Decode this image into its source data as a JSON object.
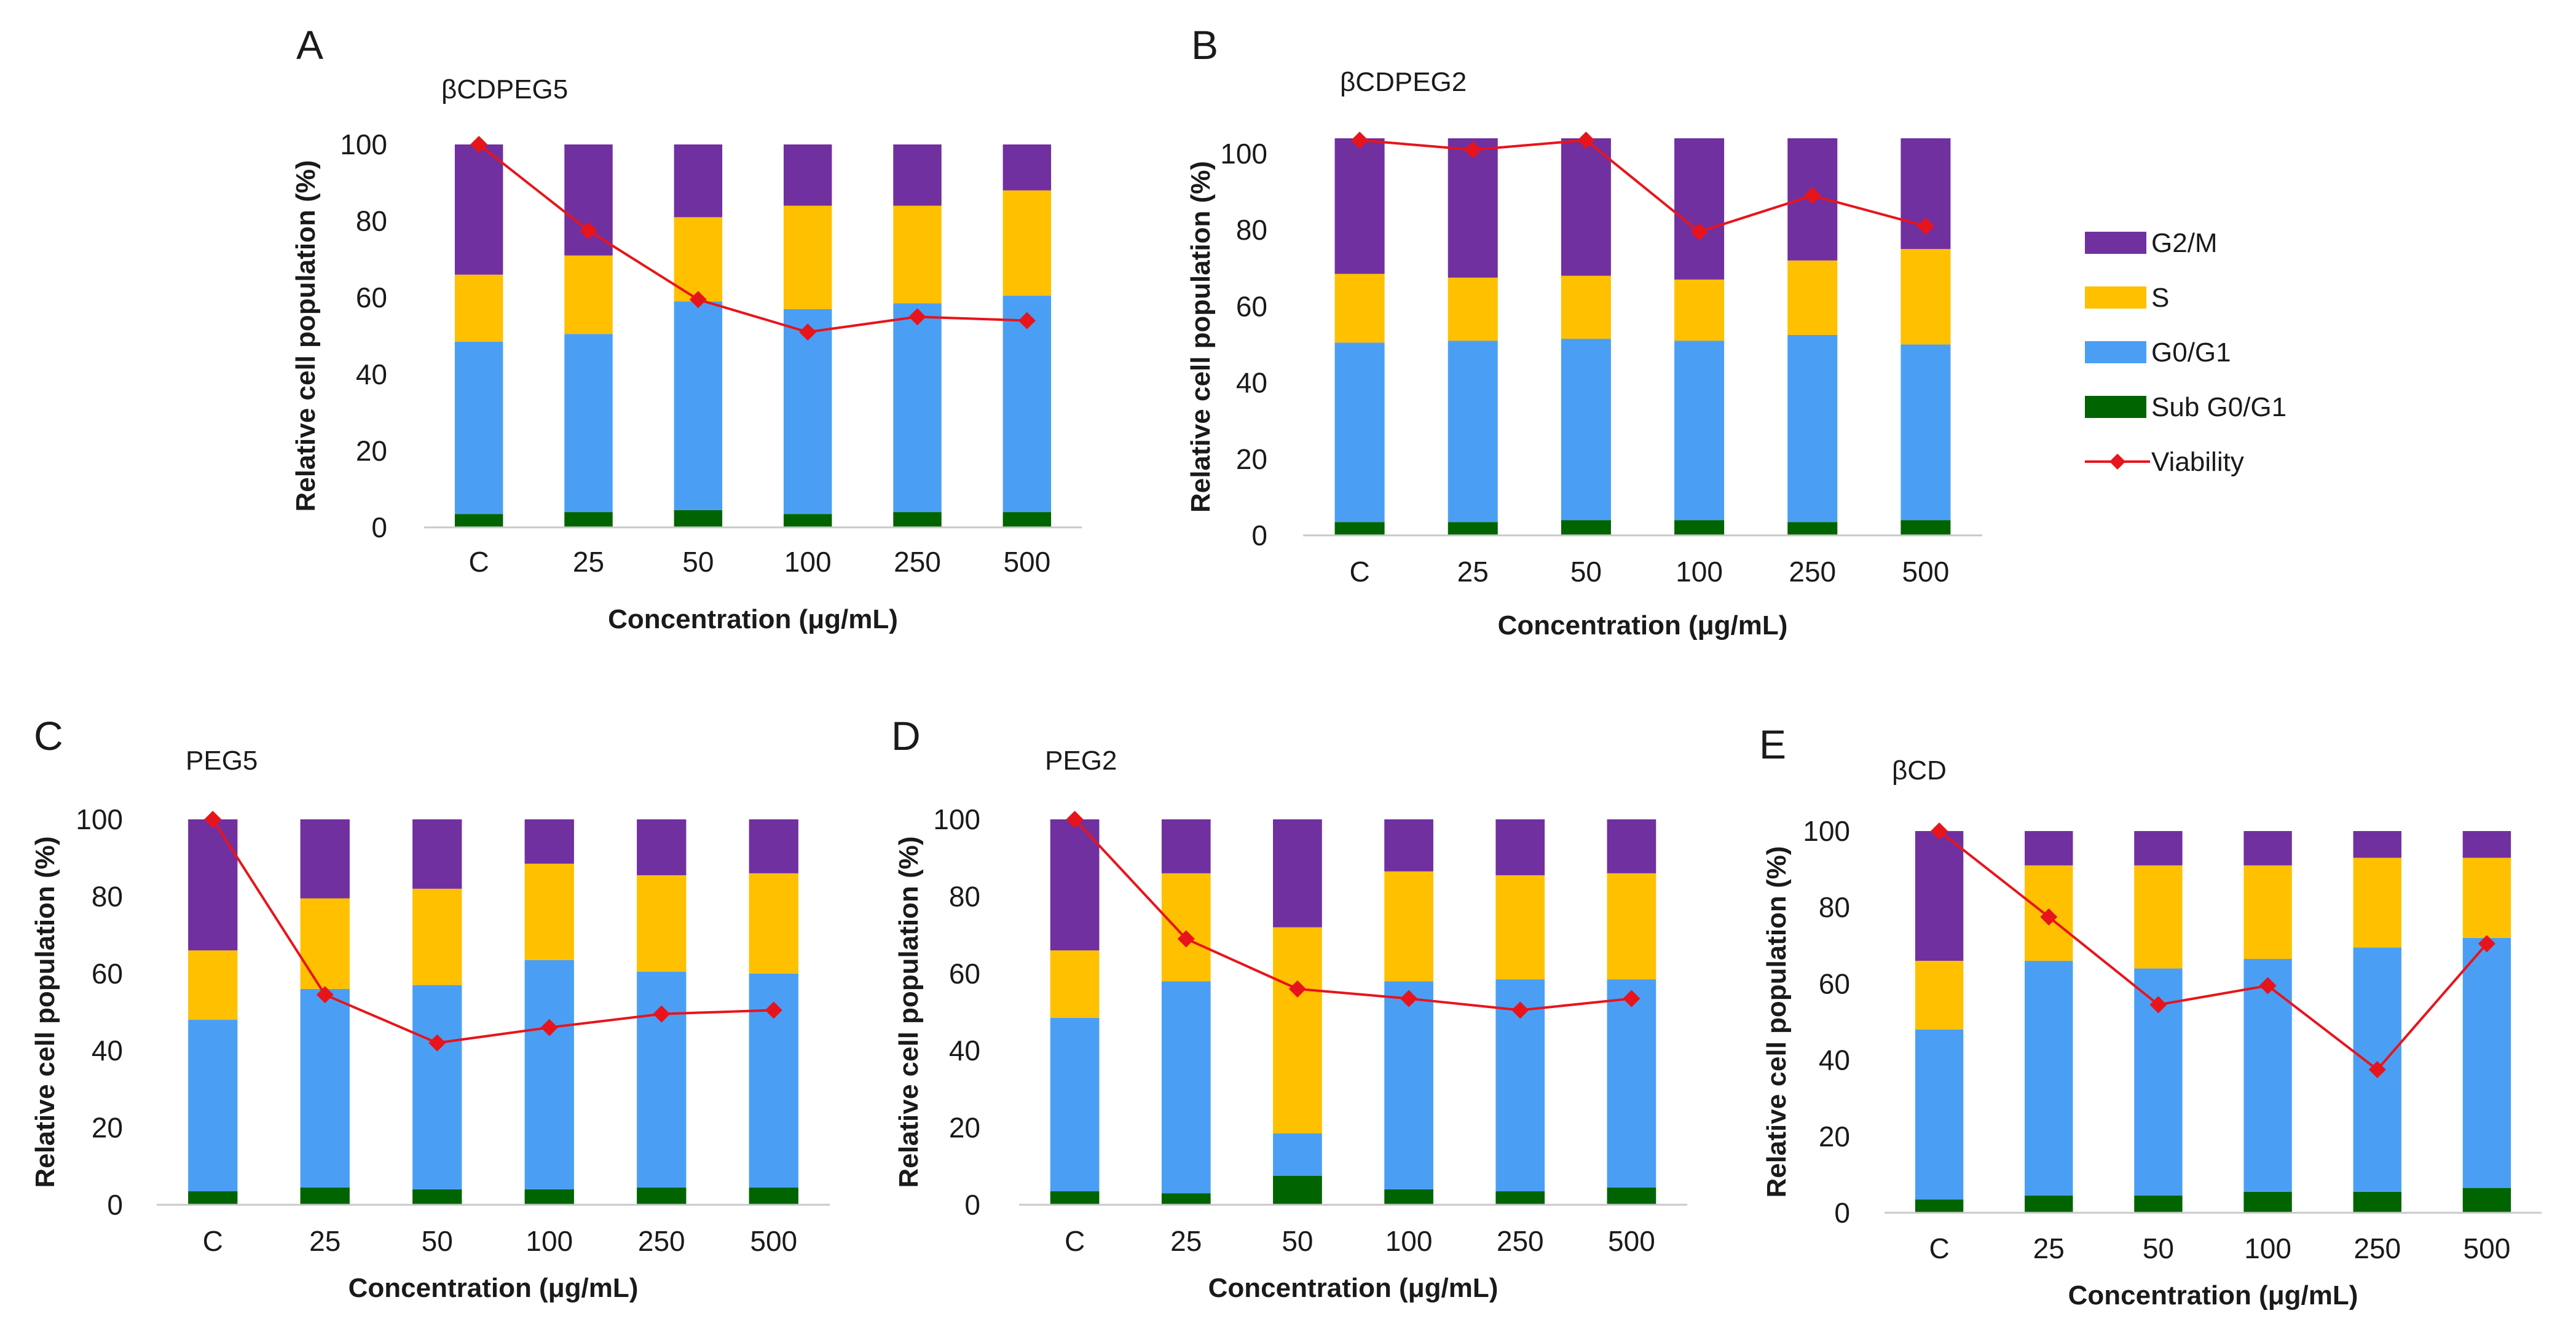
{
  "figure": {
    "legend": [
      {
        "key": "g2m",
        "label": "G2/M",
        "color": "#7030a0",
        "type": "bar"
      },
      {
        "key": "s",
        "label": "S",
        "color": "#ffc000",
        "type": "bar"
      },
      {
        "key": "g0g1",
        "label": "G0/G1",
        "color": "#4a9ff5",
        "type": "bar"
      },
      {
        "key": "sub",
        "label": "Sub G0/G1",
        "color": "#006400",
        "type": "bar"
      },
      {
        "key": "viability",
        "label": "Viability",
        "color": "#e8141b",
        "type": "line"
      }
    ]
  },
  "chart_data": [
    {
      "panel": "A",
      "title": "βCDPEG5",
      "type": "bar",
      "stacked": true,
      "categories": [
        "C",
        "25",
        "50",
        "100",
        "250",
        "500"
      ],
      "xlabel": "Concentration (μg/mL)",
      "ylabel": "Relative cell population (%)",
      "ylim": [
        0,
        100
      ],
      "yticks": [
        0,
        20,
        40,
        60,
        80,
        100
      ],
      "series": [
        {
          "name": "Sub G0/G1",
          "key": "sub",
          "values": [
            3.5,
            4,
            4.5,
            3.5,
            4,
            4
          ]
        },
        {
          "name": "G0/G1",
          "key": "g0g1",
          "values": [
            45,
            46.5,
            54.5,
            53.5,
            54.5,
            56.5
          ]
        },
        {
          "name": "S",
          "key": "s",
          "values": [
            17.5,
            20.5,
            22,
            27,
            25.5,
            27.5
          ]
        },
        {
          "name": "G2/M",
          "key": "g2m",
          "values": [
            34,
            29,
            19,
            16,
            16,
            12
          ]
        },
        {
          "name": "Viability",
          "key": "viability",
          "type": "line",
          "values": [
            100,
            77.5,
            59.5,
            51,
            55,
            54
          ]
        }
      ]
    },
    {
      "panel": "B",
      "title": "βCDPEG2",
      "type": "bar",
      "stacked": true,
      "categories": [
        "C",
        "25",
        "50",
        "100",
        "250",
        "500"
      ],
      "xlabel": "Concentration (μg/mL)",
      "ylabel": "Relative cell population (%)",
      "ylim": [
        0,
        104
      ],
      "yticks": [
        0,
        20,
        40,
        60,
        80,
        100
      ],
      "series": [
        {
          "name": "Sub G0/G1",
          "key": "sub",
          "values": [
            3.5,
            3.5,
            4,
            4,
            3.5,
            4
          ]
        },
        {
          "name": "G0/G1",
          "key": "g0g1",
          "values": [
            47,
            47.5,
            47.5,
            47,
            49,
            46
          ]
        },
        {
          "name": "S",
          "key": "s",
          "values": [
            18,
            16.5,
            16.5,
            16,
            19.5,
            25
          ]
        },
        {
          "name": "G2/M",
          "key": "g2m",
          "values": [
            35.5,
            36.5,
            36,
            37,
            32,
            29
          ]
        },
        {
          "name": "Viability",
          "key": "viability",
          "type": "line",
          "values": [
            103.5,
            101,
            103.5,
            79.5,
            89,
            81
          ]
        }
      ]
    },
    {
      "panel": "C",
      "title": "PEG5",
      "type": "bar",
      "stacked": true,
      "categories": [
        "C",
        "25",
        "50",
        "100",
        "250",
        "500"
      ],
      "xlabel": "Concentration (μg/mL)",
      "ylabel": "Relative cell population (%)",
      "ylim": [
        0,
        100
      ],
      "yticks": [
        0,
        20,
        40,
        60,
        80,
        100
      ],
      "series": [
        {
          "name": "Sub G0/G1",
          "key": "sub",
          "values": [
            3.5,
            4.5,
            4,
            4,
            4.5,
            4.5
          ]
        },
        {
          "name": "G0/G1",
          "key": "g0g1",
          "values": [
            44.5,
            51.5,
            53,
            59.5,
            56,
            55.5
          ]
        },
        {
          "name": "S",
          "key": "s",
          "values": [
            18,
            23.5,
            25,
            25,
            25,
            26
          ]
        },
        {
          "name": "G2/M",
          "key": "g2m",
          "values": [
            34,
            20.5,
            18,
            11.5,
            14.5,
            14
          ]
        },
        {
          "name": "Viability",
          "key": "viability",
          "type": "line",
          "values": [
            100,
            54.5,
            42,
            46,
            49.5,
            50.5
          ]
        }
      ]
    },
    {
      "panel": "D",
      "title": "PEG2",
      "type": "bar",
      "stacked": true,
      "categories": [
        "C",
        "25",
        "50",
        "100",
        "250",
        "500"
      ],
      "xlabel": "Concentration (μg/mL)",
      "ylabel": "Relative cell population (%)",
      "ylim": [
        0,
        100
      ],
      "yticks": [
        0,
        20,
        40,
        60,
        80,
        100
      ],
      "series": [
        {
          "name": "Sub G0/G1",
          "key": "sub",
          "values": [
            3.5,
            3,
            7.5,
            4,
            3.5,
            4.5
          ]
        },
        {
          "name": "G0/G1",
          "key": "g0g1",
          "values": [
            45,
            55,
            11,
            54,
            55,
            54
          ]
        },
        {
          "name": "S",
          "key": "s",
          "values": [
            17.5,
            28,
            53.5,
            28.5,
            27,
            27.5
          ]
        },
        {
          "name": "G2/M",
          "key": "g2m",
          "values": [
            34,
            14,
            28,
            13.5,
            14.5,
            14
          ]
        },
        {
          "name": "Viability",
          "key": "viability",
          "type": "line",
          "values": [
            100,
            69,
            56,
            53.5,
            50.5,
            53.5
          ]
        }
      ]
    },
    {
      "panel": "E",
      "title": "βCD",
      "type": "bar",
      "stacked": true,
      "categories": [
        "C",
        "25",
        "50",
        "100",
        "250",
        "500"
      ],
      "xlabel": "Concentration (μg/mL)",
      "ylabel": "Relative cell population (%)",
      "ylim": [
        0,
        100
      ],
      "yticks": [
        0,
        20,
        40,
        60,
        80,
        100
      ],
      "series": [
        {
          "name": "Sub G0/G1",
          "key": "sub",
          "values": [
            3.5,
            4.5,
            4.5,
            5.5,
            5.5,
            6.5
          ]
        },
        {
          "name": "G0/G1",
          "key": "g0g1",
          "values": [
            44.5,
            61.5,
            59.5,
            61,
            64,
            65.5
          ]
        },
        {
          "name": "S",
          "key": "s",
          "values": [
            18,
            25,
            27,
            24.5,
            23.5,
            21
          ]
        },
        {
          "name": "G2/M",
          "key": "g2m",
          "values": [
            34,
            9,
            9,
            9,
            7,
            7
          ]
        },
        {
          "name": "Viability",
          "key": "viability",
          "type": "line",
          "values": [
            100,
            77.5,
            54.5,
            59.5,
            37.5,
            70.5
          ]
        }
      ]
    }
  ]
}
